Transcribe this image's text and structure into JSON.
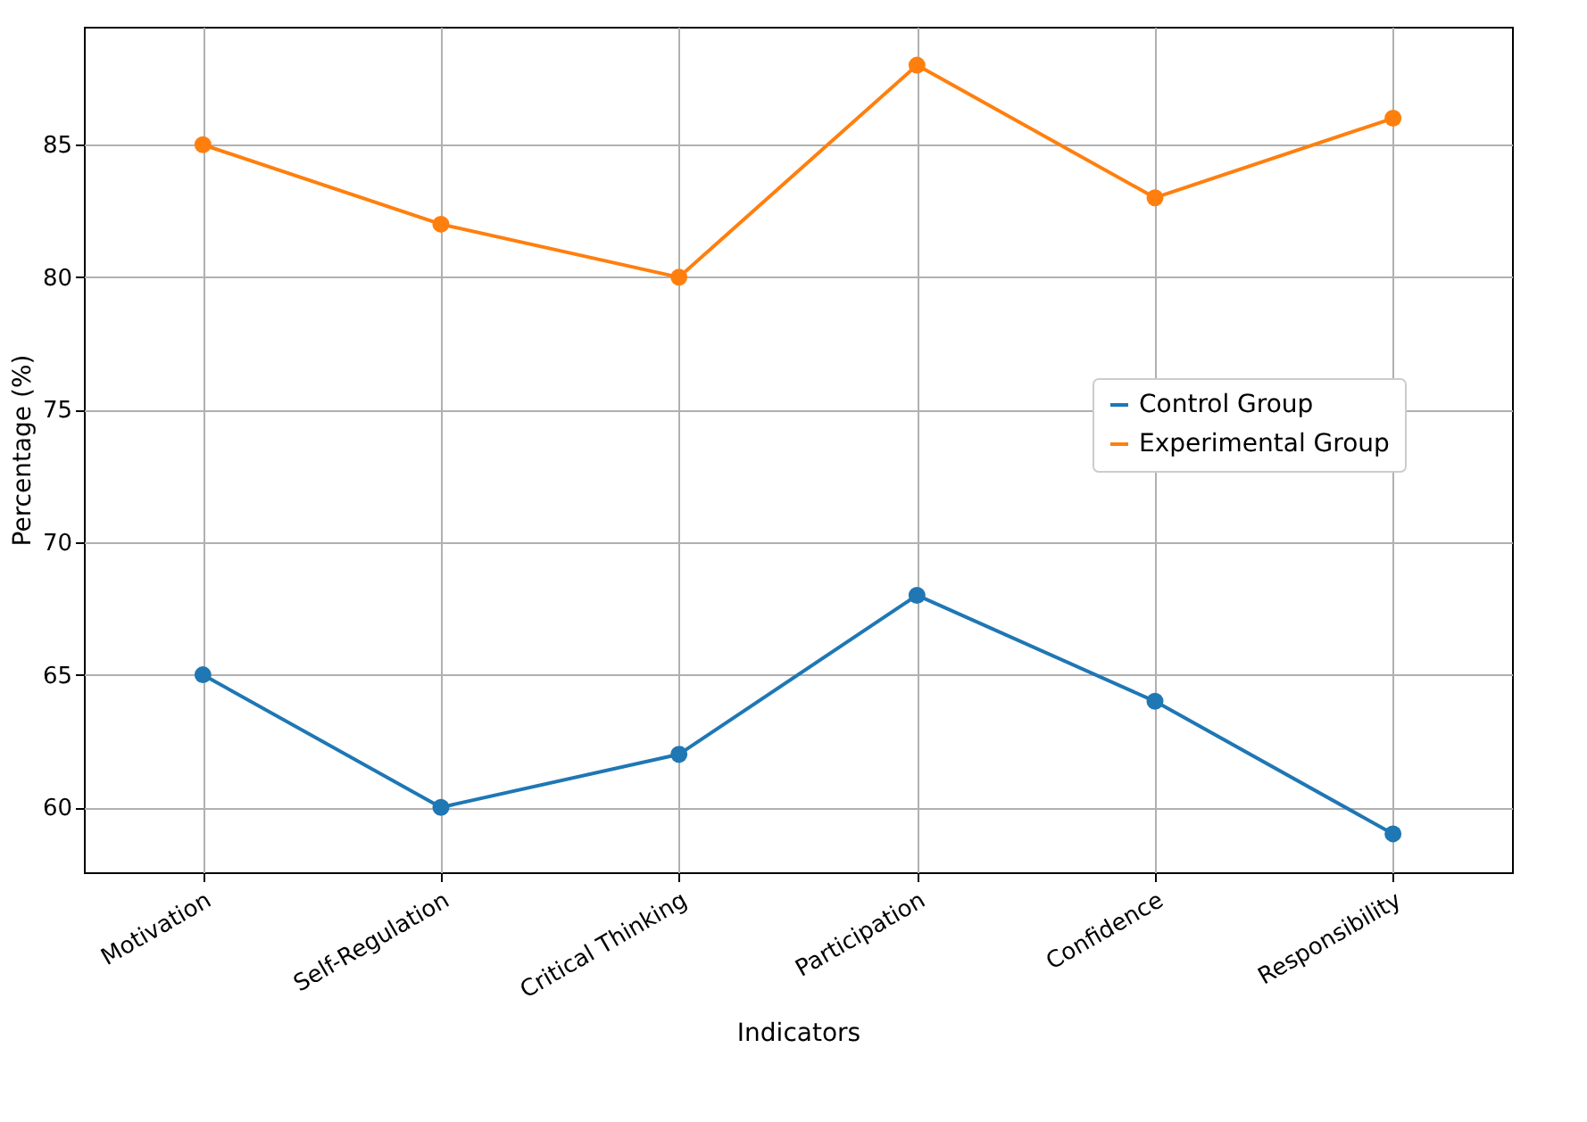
{
  "chart_data": {
    "type": "line",
    "xlabel": "Indicators",
    "ylabel": "Percentage (%)",
    "categories": [
      "Motivation",
      "Self-Regulation",
      "Critical Thinking",
      "Participation",
      "Confidence",
      "Responsibility"
    ],
    "series": [
      {
        "name": "Control Group",
        "color": "#1f77b4",
        "values": [
          65,
          60,
          62,
          68,
          64,
          59
        ]
      },
      {
        "name": "Experimental Group",
        "color": "#ff7f0e",
        "values": [
          85,
          82,
          80,
          88,
          83,
          86
        ]
      }
    ],
    "ylim": [
      57.55,
      89.45
    ],
    "yticks": [
      60,
      65,
      70,
      75,
      80,
      85
    ],
    "grid": true,
    "legend": "center right",
    "marker": "circle"
  }
}
